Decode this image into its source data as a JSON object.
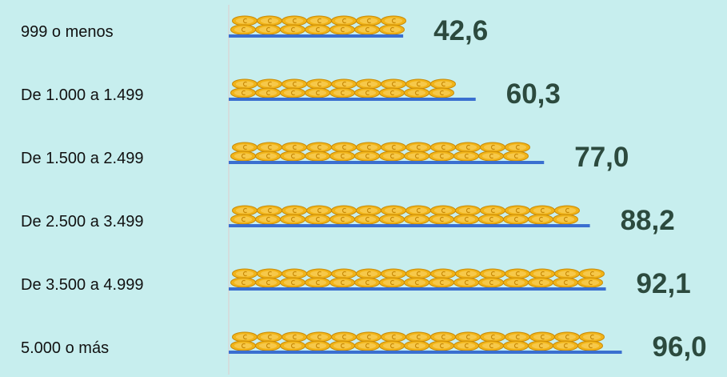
{
  "chart_data": {
    "type": "bar",
    "orientation": "horizontal",
    "categories": [
      "999 o menos",
      "De 1.000 a 1.499",
      "De 1.500 a 2.499",
      "De 2.500 a 3.499",
      "De 3.500 a 4.999",
      "5.000 o más"
    ],
    "values": [
      42.6,
      60.3,
      77.0,
      88.2,
      92.1,
      96.0
    ],
    "value_labels": [
      "42,6",
      "60,3",
      "77,0",
      "88,2",
      "92,1",
      "96,0"
    ],
    "xlim": [
      0,
      100
    ],
    "bar_style": "stacked euro coins on blue base line",
    "grid": false,
    "legend": "none"
  },
  "colors": {
    "background": "#c7eeee",
    "baseline": "#3a6fd0",
    "coin": "#f1b418",
    "coin_edge": "#c98a07",
    "value_text": "#2c4a3e",
    "axis_line": "#d7d7d7"
  }
}
